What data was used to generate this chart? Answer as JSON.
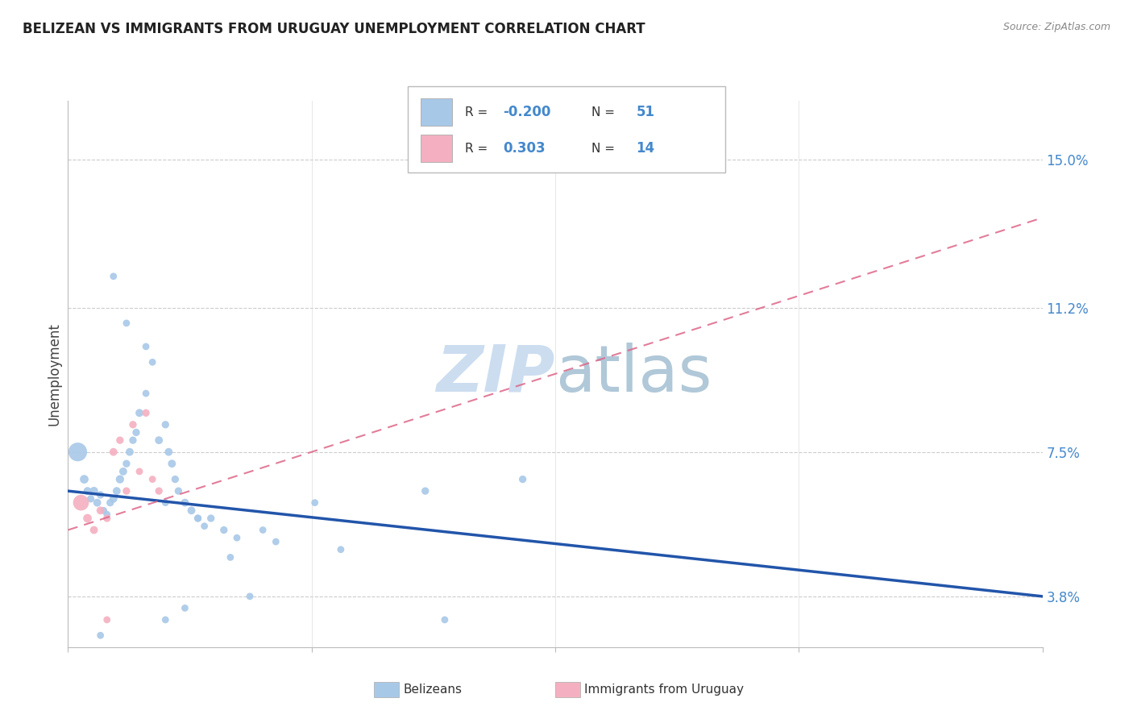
{
  "title": "BELIZEAN VS IMMIGRANTS FROM URUGUAY UNEMPLOYMENT CORRELATION CHART",
  "source": "Source: ZipAtlas.com",
  "ylabel": "Unemployment",
  "yticks": [
    3.8,
    7.5,
    11.2,
    15.0
  ],
  "ytick_labels": [
    "3.8%",
    "7.5%",
    "11.2%",
    "15.0%"
  ],
  "xmin": 0.0,
  "xmax": 15.0,
  "ymin": 2.5,
  "ymax": 16.5,
  "blue_line_y0": 6.5,
  "blue_line_y1": 3.8,
  "pink_line_y0": 5.5,
  "pink_line_y1": 13.5,
  "belizean_color": "#a8c8e8",
  "uruguay_color": "#f4b0c0",
  "belizean_line_color": "#2255aa",
  "uruguay_line_color": "#dd6688",
  "watermark_color": "#ccddf0",
  "belizean_points": [
    [
      0.15,
      7.5,
      280
    ],
    [
      0.25,
      6.8,
      60
    ],
    [
      0.3,
      6.5,
      50
    ],
    [
      0.35,
      6.3,
      45
    ],
    [
      0.4,
      6.5,
      55
    ],
    [
      0.45,
      6.2,
      50
    ],
    [
      0.5,
      6.4,
      45
    ],
    [
      0.55,
      6.0,
      40
    ],
    [
      0.6,
      5.9,
      40
    ],
    [
      0.65,
      6.2,
      45
    ],
    [
      0.7,
      6.3,
      50
    ],
    [
      0.75,
      6.5,
      50
    ],
    [
      0.8,
      6.8,
      55
    ],
    [
      0.85,
      7.0,
      50
    ],
    [
      0.9,
      7.2,
      45
    ],
    [
      0.95,
      7.5,
      50
    ],
    [
      1.0,
      7.8,
      45
    ],
    [
      1.05,
      8.0,
      45
    ],
    [
      1.1,
      8.5,
      50
    ],
    [
      1.2,
      9.0,
      40
    ],
    [
      1.3,
      9.8,
      40
    ],
    [
      1.4,
      7.8,
      50
    ],
    [
      1.5,
      8.2,
      45
    ],
    [
      1.55,
      7.5,
      50
    ],
    [
      1.6,
      7.2,
      50
    ],
    [
      1.65,
      6.8,
      45
    ],
    [
      1.7,
      6.5,
      45
    ],
    [
      1.8,
      6.2,
      50
    ],
    [
      1.9,
      6.0,
      50
    ],
    [
      2.0,
      5.8,
      45
    ],
    [
      2.1,
      5.6,
      40
    ],
    [
      2.2,
      5.8,
      45
    ],
    [
      2.4,
      5.5,
      45
    ],
    [
      2.6,
      5.3,
      40
    ],
    [
      3.0,
      5.5,
      40
    ],
    [
      0.7,
      12.0,
      40
    ],
    [
      0.9,
      10.8,
      40
    ],
    [
      1.2,
      10.2,
      40
    ],
    [
      1.5,
      6.2,
      40
    ],
    [
      2.0,
      5.8,
      40
    ],
    [
      2.5,
      4.8,
      40
    ],
    [
      3.2,
      5.2,
      40
    ],
    [
      3.8,
      6.2,
      40
    ],
    [
      5.5,
      6.5,
      45
    ],
    [
      7.0,
      6.8,
      45
    ],
    [
      4.2,
      5.0,
      40
    ],
    [
      5.8,
      3.2,
      40
    ],
    [
      2.8,
      3.8,
      40
    ],
    [
      1.8,
      3.5,
      40
    ],
    [
      1.5,
      3.2,
      40
    ],
    [
      0.5,
      2.8,
      40
    ]
  ],
  "uruguay_points": [
    [
      0.2,
      6.2,
      200
    ],
    [
      0.3,
      5.8,
      60
    ],
    [
      0.4,
      5.5,
      50
    ],
    [
      0.5,
      6.0,
      50
    ],
    [
      0.6,
      5.8,
      45
    ],
    [
      0.7,
      7.5,
      50
    ],
    [
      0.8,
      7.8,
      45
    ],
    [
      0.9,
      6.5,
      45
    ],
    [
      1.0,
      8.2,
      45
    ],
    [
      1.1,
      7.0,
      40
    ],
    [
      1.2,
      8.5,
      45
    ],
    [
      1.3,
      6.8,
      40
    ],
    [
      1.4,
      6.5,
      45
    ],
    [
      0.6,
      3.2,
      40
    ]
  ]
}
